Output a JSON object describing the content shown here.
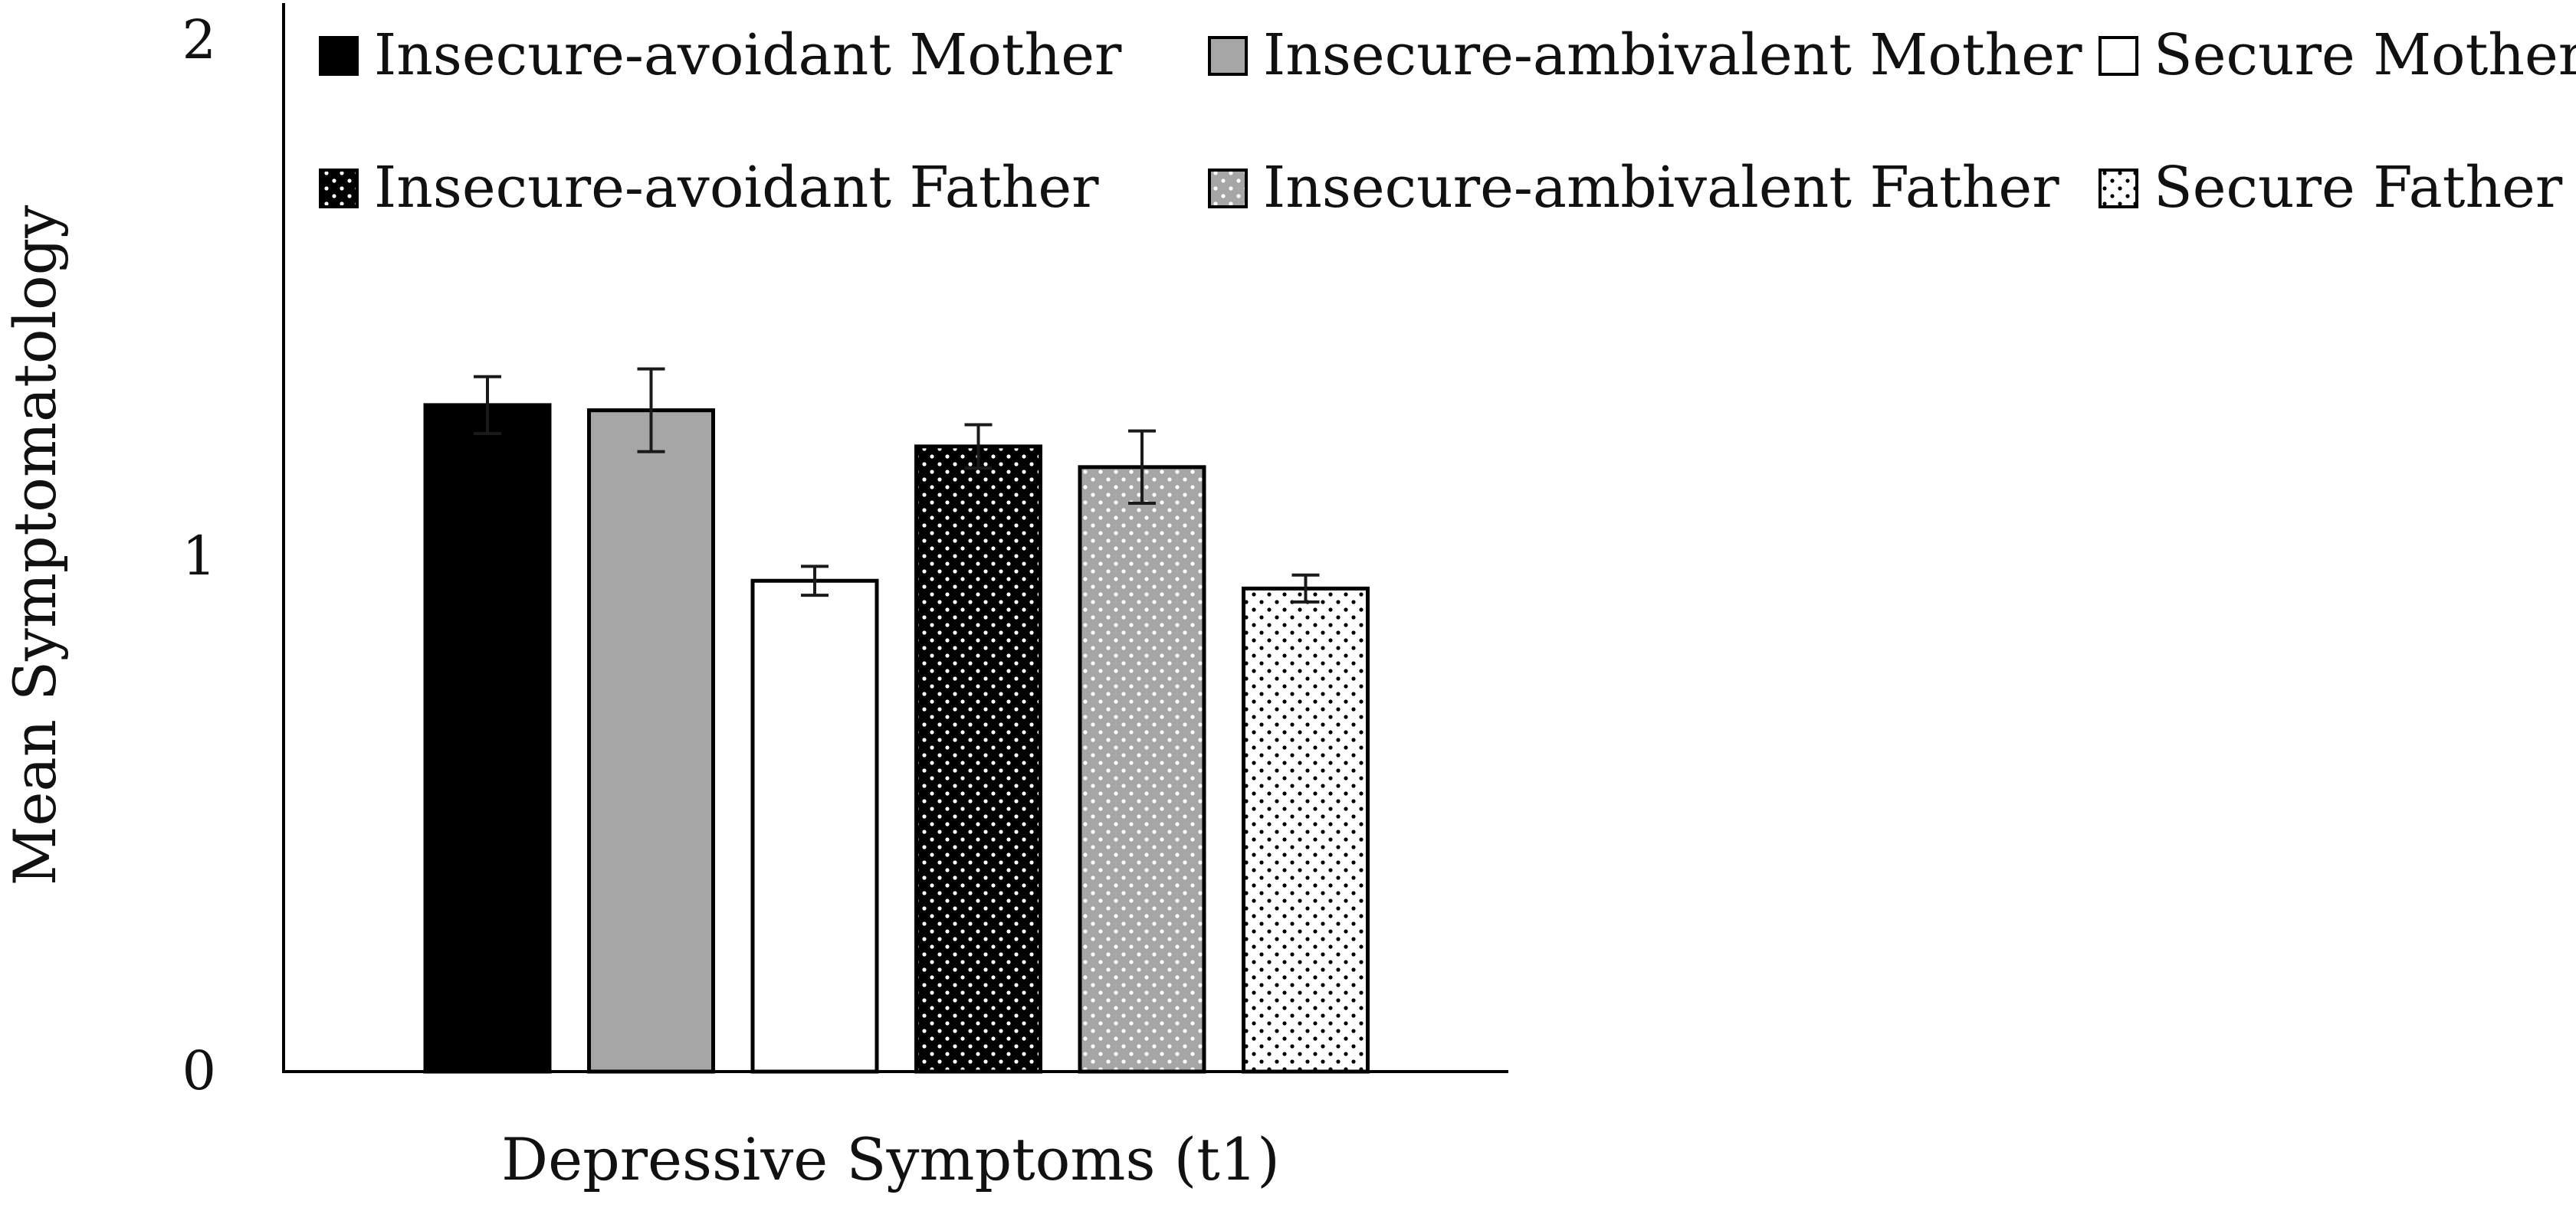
{
  "chart_data": {
    "type": "bar",
    "title": "",
    "xlabel": "Depressive Symptoms (t1)",
    "ylabel": "Mean Symptomatology",
    "ylim": [
      0,
      2
    ],
    "yticks": [
      "0",
      "1",
      "2"
    ],
    "grid": false,
    "legend_position": "top",
    "categories": [
      "Depressive Symptoms (t1)"
    ],
    "series": [
      {
        "name": "Insecure-avoidant Mother",
        "values": [
          1.29
        ],
        "error": [
          0.055
        ],
        "color": "#000000",
        "pattern": "solid"
      },
      {
        "name": "Insecure-ambivalent Mother",
        "values": [
          1.28
        ],
        "error": [
          0.08
        ],
        "color": "#a6a6a6",
        "pattern": "solid"
      },
      {
        "name": "Secure Mother",
        "values": [
          0.95
        ],
        "error": [
          0.028
        ],
        "color": "#ffffff",
        "pattern": "solid"
      },
      {
        "name": "Insecure-avoidant Father",
        "values": [
          1.21
        ],
        "error": [
          0.042
        ],
        "color": "#000000",
        "pattern": "dots"
      },
      {
        "name": "Insecure-ambivalent Father",
        "values": [
          1.17
        ],
        "error": [
          0.07
        ],
        "color": "#a6a6a6",
        "pattern": "dots"
      },
      {
        "name": "Secure Father",
        "values": [
          0.935
        ],
        "error": [
          0.026
        ],
        "color": "#ffffff",
        "pattern": "dots"
      }
    ]
  }
}
